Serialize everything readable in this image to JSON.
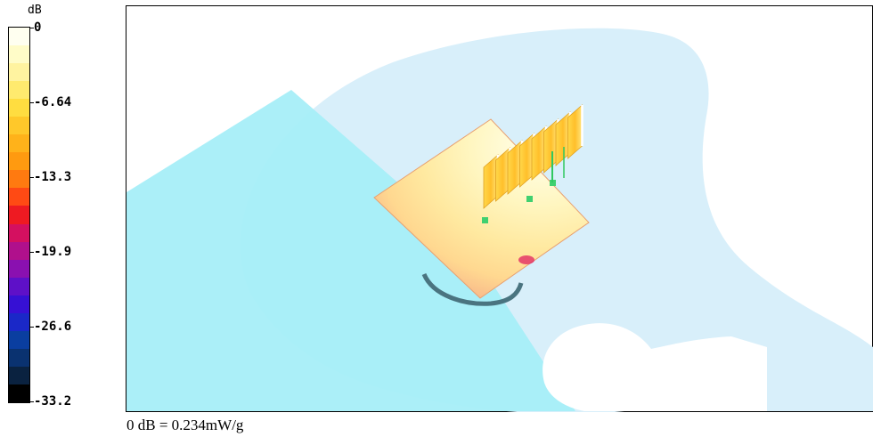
{
  "colorbar": {
    "unit": "dB",
    "ticks": [
      "0",
      "-6.64",
      "-13.3",
      "-19.9",
      "-26.6",
      "-33.2"
    ],
    "colors": [
      "#fffff0",
      "#fffcc8",
      "#fff3a0",
      "#ffea6e",
      "#ffdd40",
      "#ffc82a",
      "#ffb21a",
      "#ff9a10",
      "#ff7a10",
      "#ff4a14",
      "#ee1a22",
      "#d41060",
      "#b0108c",
      "#8a10b0",
      "#5e10c8",
      "#3610d4",
      "#1a28c8",
      "#0a3ea0",
      "#0a3270",
      "#0a2240",
      "#000000"
    ]
  },
  "footer": "0 dB = 0.234mW/g",
  "colors": {
    "phantom_light": "#d8effa",
    "phantom_plane": "#a8eef8",
    "frame": "#000000"
  }
}
